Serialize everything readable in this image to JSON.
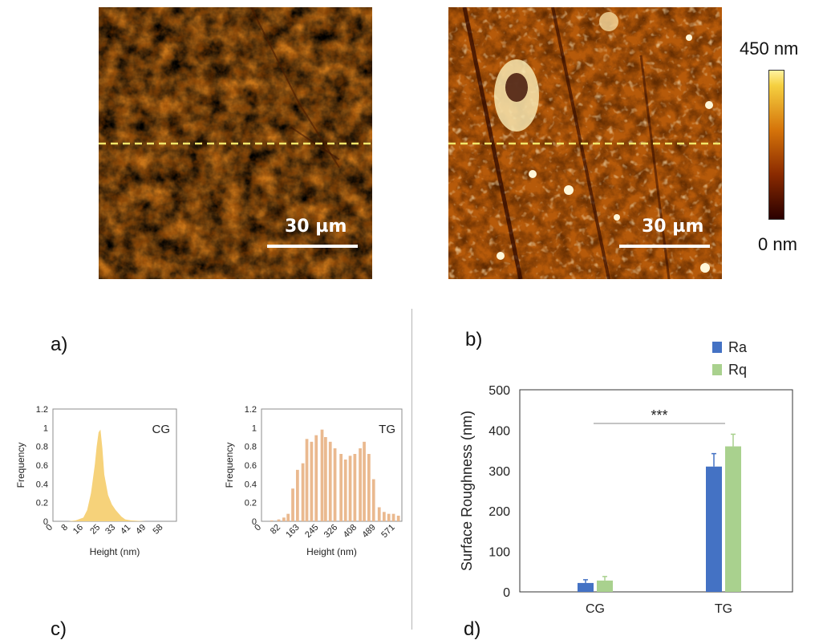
{
  "panels": {
    "a": "a)",
    "b": "b)",
    "c": "c)",
    "d": "d)"
  },
  "afm_images": {
    "left_scale": "30 µm",
    "right_scale": "30 µm"
  },
  "colorbar": {
    "max_label": "450 nm",
    "min_label": "0 nm",
    "colors": [
      "#2a0000",
      "#8a2a00",
      "#d5740a",
      "#f5d040",
      "#fff3a0"
    ]
  },
  "chart_data": [
    {
      "id": "hist_cg",
      "type": "area",
      "title": "CG",
      "xlabel": "Height (nm)",
      "ylabel": "Frequency",
      "ylim": [
        0,
        1.2
      ],
      "yticks": [
        "0",
        "0.2",
        "0.4",
        "0.6",
        "0.8",
        "1",
        "1.2"
      ],
      "xticks": [
        "0",
        "8",
        "16",
        "25",
        "33",
        "41",
        "49",
        "58"
      ],
      "x": [
        0,
        8,
        12,
        16,
        18,
        20,
        22,
        23,
        24,
        25,
        26,
        27,
        29,
        31,
        33,
        36,
        38,
        41,
        49,
        58
      ],
      "y": [
        0,
        0,
        0.01,
        0.04,
        0.12,
        0.3,
        0.6,
        0.8,
        0.95,
        0.98,
        0.78,
        0.5,
        0.28,
        0.18,
        0.12,
        0.05,
        0.02,
        0.01,
        0,
        0
      ],
      "color": "#f6d27a"
    },
    {
      "id": "hist_tg",
      "type": "bar",
      "title": "TG",
      "xlabel": "Height (nm)",
      "ylabel": "Frequency",
      "ylim": [
        0,
        1.2
      ],
      "yticks": [
        "0",
        "0.2",
        "0.4",
        "0.6",
        "0.8",
        "1",
        "1.2"
      ],
      "xticks": [
        "0",
        "82",
        "163",
        "245",
        "326",
        "408",
        "489",
        "571"
      ],
      "x": [
        0,
        30,
        60,
        82,
        100,
        120,
        140,
        163,
        180,
        200,
        220,
        245,
        260,
        280,
        300,
        326,
        345,
        365,
        385,
        408,
        425,
        445,
        465,
        489,
        510,
        530,
        550,
        571
      ],
      "y": [
        0,
        0.01,
        0.02,
        0.04,
        0.08,
        0.35,
        0.55,
        0.62,
        0.88,
        0.85,
        0.92,
        0.98,
        0.9,
        0.85,
        0.78,
        0.72,
        0.66,
        0.7,
        0.72,
        0.78,
        0.85,
        0.72,
        0.45,
        0.15,
        0.1,
        0.08,
        0.08,
        0.06
      ],
      "color": "#eab98f"
    },
    {
      "id": "roughness",
      "type": "bar",
      "ylabel": "Surface Roughness (nm)",
      "xlabel": "",
      "ylim": [
        0,
        500
      ],
      "yticks": [
        "0",
        "100",
        "200",
        "300",
        "400",
        "500"
      ],
      "categories": [
        "CG",
        "TG"
      ],
      "series": [
        {
          "name": "Ra",
          "values": [
            22,
            310
          ],
          "errors": [
            8,
            32
          ],
          "color": "#4472c4"
        },
        {
          "name": "Rq",
          "values": [
            28,
            360
          ],
          "errors": [
            10,
            30
          ],
          "color": "#a9d18e"
        }
      ],
      "significance": "***",
      "legend": "top-right"
    }
  ]
}
